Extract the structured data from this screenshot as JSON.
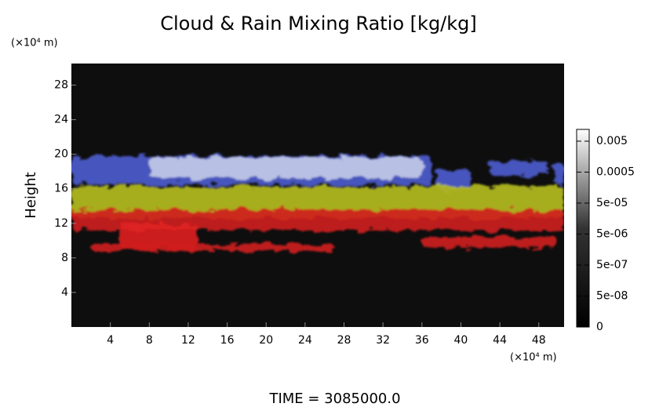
{
  "chart_data": {
    "type": "heatmap",
    "title": "Cloud & Rain Mixing Ratio [kg/kg]",
    "y_unit_label": "(×10⁴ m)",
    "x_unit_label": "(×10⁴ m)",
    "ylabel": "Height",
    "time_label": "TIME = 3085000.0",
    "background": "#0e0e0e",
    "xlim": [
      0,
      50.6
    ],
    "ylim": [
      0,
      30.5
    ],
    "xticks": [
      4,
      8,
      12,
      16,
      20,
      24,
      28,
      32,
      36,
      40,
      44,
      48
    ],
    "yticks": [
      4,
      8,
      12,
      16,
      20,
      24,
      28
    ],
    "layers": [
      {
        "color": "#4c5cd0",
        "x": [
          0,
          37
        ],
        "y": [
          16.5,
          19.8
        ]
      },
      {
        "color": "#4c5cd0",
        "x": [
          37.5,
          41
        ],
        "y": [
          16,
          18.2
        ]
      },
      {
        "color": "#4c5cd0",
        "x": [
          43,
          49
        ],
        "y": [
          17.5,
          19.2
        ]
      },
      {
        "color": "#4c5cd0",
        "x": [
          49.5,
          50.6
        ],
        "y": [
          16.5,
          19
        ]
      },
      {
        "color": "#c4cce8",
        "x": [
          8,
          36
        ],
        "y": [
          17.2,
          19.6
        ]
      },
      {
        "color": "#b8c020",
        "x": [
          0,
          50.6
        ],
        "y": [
          12.6,
          16.3
        ]
      },
      {
        "color": "#d01c1c",
        "x": [
          0,
          50.6
        ],
        "y": [
          11.2,
          13.6
        ]
      },
      {
        "color": "#e02020",
        "x": [
          5,
          13
        ],
        "y": [
          9,
          12
        ]
      },
      {
        "color": "#d01c1c",
        "x": [
          2,
          27
        ],
        "y": [
          8.8,
          9.6
        ]
      },
      {
        "color": "#d01c1c",
        "x": [
          36,
          50
        ],
        "y": [
          9.2,
          10.4
        ]
      }
    ],
    "colorbar": {
      "scale": "log",
      "clim": [
        5e-09,
        0.012
      ],
      "ticks": [
        {
          "value": 0.005,
          "label": "0.005"
        },
        {
          "value": 0.0005,
          "label": "0.0005"
        },
        {
          "value": 5e-05,
          "label": "5e-05"
        },
        {
          "value": 5e-06,
          "label": "5e-06"
        },
        {
          "value": 5e-07,
          "label": "5e-07"
        },
        {
          "value": 5e-08,
          "label": "5e-08"
        },
        0
      ]
    }
  }
}
